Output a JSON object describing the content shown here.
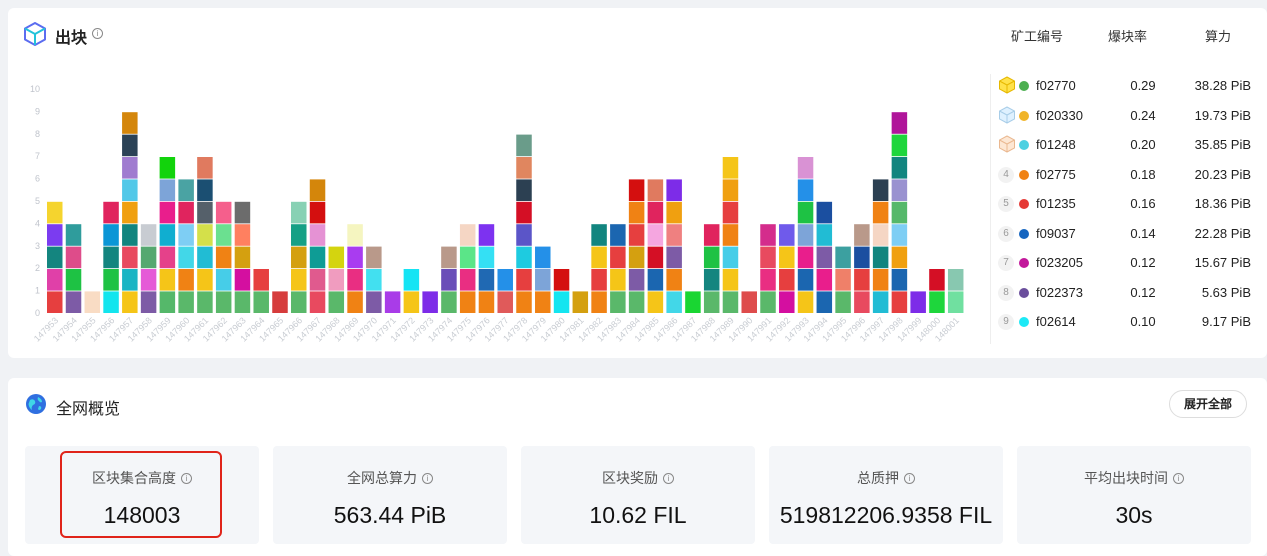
{
  "blocks_section": {
    "title": "出块",
    "columns": {
      "miner": "矿工编号",
      "rate": "爆块率",
      "power": "算力"
    }
  },
  "chart_data": {
    "type": "bar",
    "stacked": true,
    "y_ticks": [
      "0",
      "1",
      "2",
      "3",
      "4",
      "5",
      "6",
      "7",
      "8",
      "9",
      "10"
    ],
    "ylim": [
      0,
      10
    ],
    "grid": false,
    "categories": [
      "147953",
      "147954",
      "147955",
      "147956",
      "147957",
      "147958",
      "147959",
      "147960",
      "147961",
      "147962",
      "147963",
      "147964",
      "147965",
      "147966",
      "147967",
      "147968",
      "147969",
      "147970",
      "147971",
      "147972",
      "147973",
      "147974",
      "147975",
      "147976",
      "147977",
      "147978",
      "147979",
      "147980",
      "147981",
      "147982",
      "147983",
      "147984",
      "147985",
      "147986",
      "147987",
      "147988",
      "147989",
      "147990",
      "147991",
      "147992",
      "147993",
      "147994",
      "147995",
      "147996",
      "147997",
      "147998",
      "147999",
      "148000",
      "148001"
    ],
    "stacks": [
      [
        "#e63f3f",
        "#e040a8",
        "#14857f",
        "#7b3cf0",
        "#f5d42e"
      ],
      [
        "#7d5ba6",
        "#1ec244",
        "#de4c8a",
        "#2f9c9c"
      ],
      [
        "#f9dcc4"
      ],
      [
        "#13e5ee",
        "#1ec244",
        "#13857f",
        "#0b96d6",
        "#e0245e"
      ],
      [
        "#f5c518",
        "#1ab5c4",
        "#e84a5f",
        "#12857f",
        "#f0a010",
        "#52c8e8",
        "#a07cd0",
        "#2b4256",
        "#d4860b"
      ],
      [
        "#7d5ba6",
        "#e55ad7",
        "#55a870",
        "#c8ccd2"
      ],
      [
        "#55b86a",
        "#f5c518",
        "#e5418a",
        "#10aed0",
        "#e91e8c",
        "#7da4d8",
        "#12d30c"
      ],
      [
        "#5ab86a",
        "#f08214",
        "#42d7e8",
        "#7ecef4",
        "#e0245e",
        "#4aa3a3"
      ],
      [
        "#5ab86a",
        "#f5c518",
        "#21bcd4",
        "#d4e04a",
        "#55606a",
        "#1b4f72",
        "#e07a5f"
      ],
      [
        "#5ab86a",
        "#46cde8",
        "#f08214",
        "#6be090",
        "#f55f8c"
      ],
      [
        "#5ab86a",
        "#d40fa0",
        "#d4a010",
        "#ff8060",
        "#6c6c6c"
      ],
      [
        "#5ab86a",
        "#e63f3f"
      ],
      [
        "#d63c3c"
      ],
      [
        "#5ab86a",
        "#f5c518",
        "#d4a010",
        "#16a085",
        "#88d1b4"
      ],
      [
        "#e84a5f",
        "#e05a8e",
        "#0e9c95",
        "#e592d4",
        "#d40f0f",
        "#d4860b"
      ],
      [
        "#5ab86a",
        "#f09cbf",
        "#d4d40f"
      ],
      [
        "#f08214",
        "#e92e82",
        "#a93cf0",
        "#f5f5c0"
      ],
      [
        "#7d5ba6",
        "#42e0f0",
        "#b9998a"
      ],
      [
        "#a93ce8"
      ],
      [
        "#f5c518",
        "#15e4f4"
      ],
      [
        "#7d2ce8"
      ],
      [
        "#5ab86a",
        "#6a4eb8",
        "#b9998a"
      ],
      [
        "#f08214",
        "#e92e82",
        "#5be588",
        "#f5d6c4"
      ],
      [
        "#f08214",
        "#2069b3",
        "#34e0f4",
        "#7d32f0"
      ],
      [
        "#e05a5a",
        "#2490e8"
      ],
      [
        "#f08214",
        "#e63f3f",
        "#1ecbe0",
        "#5b55c8",
        "#d40f25",
        "#2c4052",
        "#e0865f",
        "#6a9c8a"
      ],
      [
        "#f08214",
        "#7da4d8",
        "#2490e8"
      ],
      [
        "#14e5f0",
        "#d40f0f"
      ],
      [
        "#d4a010"
      ],
      [
        "#f08214",
        "#e63f3f",
        "#f5c518",
        "#12857f"
      ],
      [
        "#5ab86a",
        "#f5c518",
        "#e63f3f",
        "#1b66b0"
      ],
      [
        "#5ab86a",
        "#7d5ba6",
        "#d4a010",
        "#e63f3f",
        "#f08214",
        "#d40f0f"
      ],
      [
        "#f5c518",
        "#1b66b0",
        "#d40f25",
        "#f5a6e0",
        "#e0245e",
        "#e07a5f"
      ],
      [
        "#42d7e8",
        "#f08214",
        "#7d5ba6",
        "#ef8080",
        "#f0a010",
        "#7d2ce8"
      ],
      [
        "#19d632"
      ],
      [
        "#5ab86a",
        "#14857f",
        "#1ec244",
        "#e0245e"
      ],
      [
        "#5ab86a",
        "#f5c518",
        "#46cde8",
        "#f08214",
        "#e63f3f",
        "#f0a010",
        "#f5c518"
      ],
      [
        "#de4c4c"
      ],
      [
        "#5ab86a",
        "#e92e82",
        "#e84a5f",
        "#d42c8c"
      ],
      [
        "#d40fa0",
        "#e63f3f",
        "#f5c518",
        "#6f5aeb"
      ],
      [
        "#f5c518",
        "#1b66b0",
        "#e91e8c",
        "#7da4d8",
        "#1ec244",
        "#2490e8",
        "#d992d4"
      ],
      [
        "#1b66b0",
        "#e91e8c",
        "#7d5ba6",
        "#21bcd4",
        "#1b4fa0"
      ],
      [
        "#5ab86a",
        "#ef8069",
        "#3ca0a0"
      ],
      [
        "#e84a5f",
        "#e63f3f",
        "#1b4fa0",
        "#b9998a"
      ],
      [
        "#21bcd4",
        "#f08214",
        "#12857f",
        "#f5d6c4",
        "#f08214",
        "#2c4052"
      ],
      [
        "#e63f3f",
        "#1b66b0",
        "#f0a010",
        "#7ecef4",
        "#55b86a",
        "#9a92d0",
        "#12857f",
        "#1ed63c",
        "#b0159a"
      ],
      [
        "#7d2ce8"
      ],
      [
        "#1ed63c",
        "#d40f25"
      ],
      [
        "#70e0a0",
        "#88c8b0"
      ]
    ]
  },
  "leaderboard": [
    {
      "rank": "1",
      "badge": "gold",
      "dot": "#4caf50",
      "miner": "f02770",
      "rate": "0.29",
      "power": "38.28 PiB"
    },
    {
      "rank": "2",
      "badge": "silver",
      "dot": "#f0b429",
      "miner": "f020330",
      "rate": "0.24",
      "power": "19.73 PiB"
    },
    {
      "rank": "3",
      "badge": "bronze",
      "dot": "#4dd0e1",
      "miner": "f01248",
      "rate": "0.20",
      "power": "35.85 PiB"
    },
    {
      "rank": "4",
      "badge": "",
      "dot": "#f08214",
      "miner": "f02775",
      "rate": "0.18",
      "power": "20.23 PiB"
    },
    {
      "rank": "5",
      "badge": "",
      "dot": "#e53935",
      "miner": "f01235",
      "rate": "0.16",
      "power": "18.36 PiB"
    },
    {
      "rank": "6",
      "badge": "",
      "dot": "#1565c0",
      "miner": "f09037",
      "rate": "0.14",
      "power": "22.28 PiB"
    },
    {
      "rank": "7",
      "badge": "",
      "dot": "#c2189b",
      "miner": "f023205",
      "rate": "0.12",
      "power": "15.67 PiB"
    },
    {
      "rank": "8",
      "badge": "",
      "dot": "#6a4e9c",
      "miner": "f022373",
      "rate": "0.12",
      "power": "5.63 PiB"
    },
    {
      "rank": "9",
      "badge": "",
      "dot": "#1de9f6",
      "miner": "f02614",
      "rate": "0.10",
      "power": "9.17 PiB"
    }
  ],
  "overview": {
    "title": "全网概览",
    "expand_label": "展开全部",
    "stats": [
      {
        "label": "区块集合高度",
        "value": "148003"
      },
      {
        "label": "全网总算力",
        "value": "563.44 PiB"
      },
      {
        "label": "区块奖励",
        "value": "10.62 FIL"
      },
      {
        "label": "总质押",
        "value": "519812206.9358 FIL"
      },
      {
        "label": "平均出块时间",
        "value": "30s"
      }
    ]
  }
}
